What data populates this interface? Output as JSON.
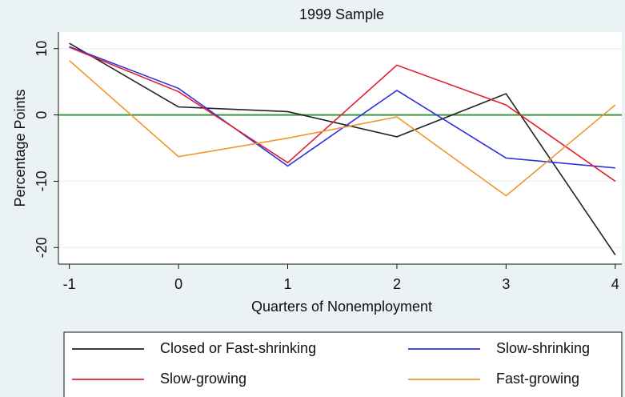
{
  "chart_data": {
    "type": "line",
    "title": "1999 Sample",
    "x_label": "Quarters of Nonemployment",
    "y_label": "Percentage Points",
    "x": [
      -1,
      0,
      1,
      2,
      3,
      4
    ],
    "series": [
      {
        "name": "Closed or Fast-shrinking",
        "color": "#222222",
        "values": [
          10.8,
          1.2,
          0.5,
          -3.3,
          3.2,
          -21.1
        ]
      },
      {
        "name": "Slow-shrinking",
        "color": "#3030e0",
        "values": [
          10.3,
          4.0,
          -7.7,
          3.7,
          -6.5,
          -8.0
        ]
      },
      {
        "name": "Slow-growing",
        "color": "#e02030",
        "values": [
          10.2,
          3.5,
          -7.2,
          7.5,
          1.5,
          -10.0
        ]
      },
      {
        "name": "Fast-growing",
        "color": "#f0962a",
        "values": [
          8.2,
          -6.3,
          -3.5,
          -0.3,
          -12.2,
          1.5
        ]
      }
    ],
    "xlim": [
      -1.1,
      4.06
    ],
    "ylim": [
      -22.5,
      12.5
    ],
    "xticks": [
      -1,
      0,
      1,
      2,
      3,
      4
    ],
    "yticks": [
      -20,
      -10,
      0,
      10
    ],
    "grid": true,
    "reference_line": {
      "value": 0,
      "color": "#3a9a3a"
    },
    "legend_position": "bottom"
  }
}
